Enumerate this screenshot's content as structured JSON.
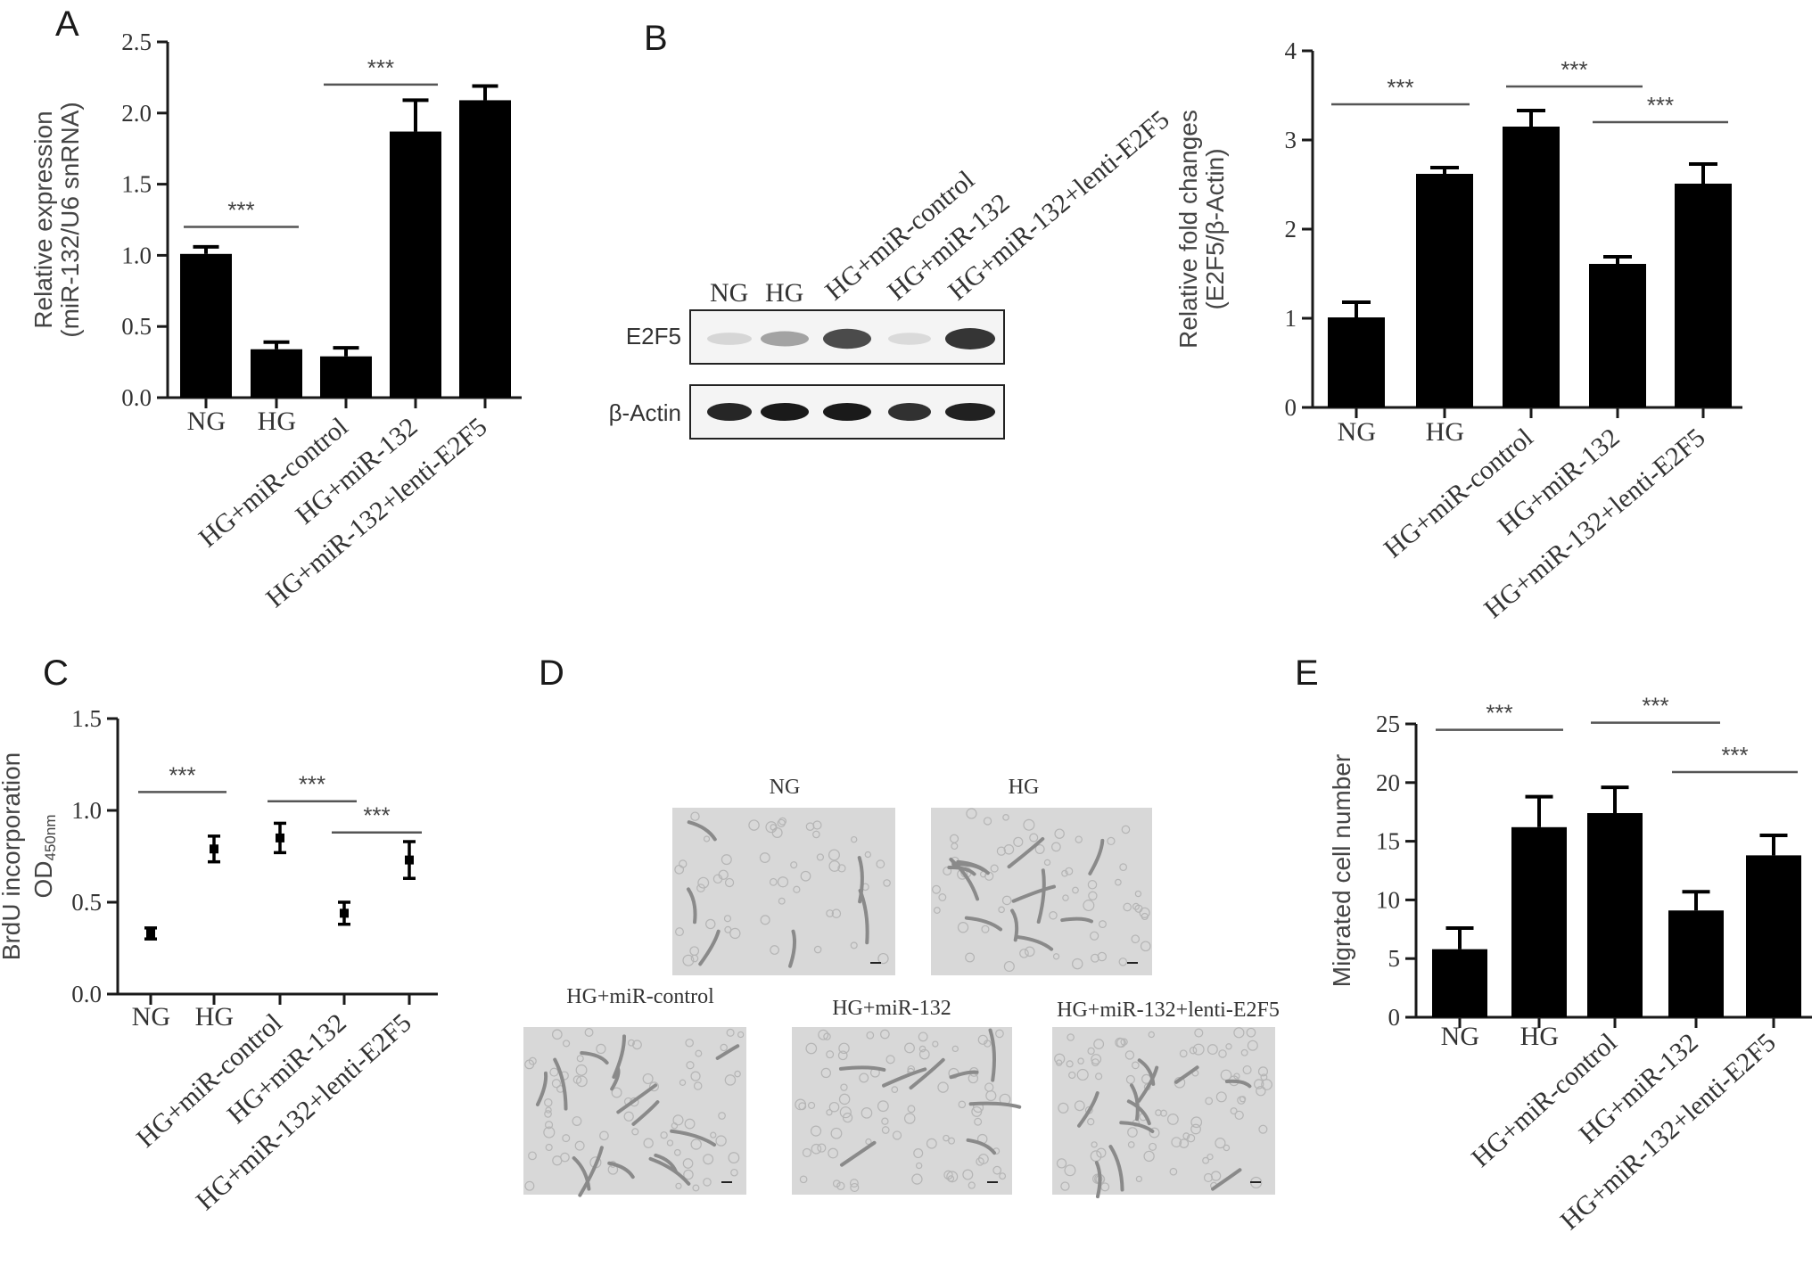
{
  "panels": {
    "A": {
      "letter": "A"
    },
    "B": {
      "letter": "B"
    },
    "C": {
      "letter": "C"
    },
    "D": {
      "letter": "D"
    },
    "E": {
      "letter": "E"
    }
  },
  "blot": {
    "lane_labels": [
      "NG",
      "HG",
      "HG+miR-control",
      "HG+miR-132",
      "HG+miR-132+lenti-E2F5"
    ],
    "row_labels": [
      "E2F5",
      "β-Actin"
    ],
    "e2f5_intensity": [
      0.12,
      0.35,
      0.75,
      0.1,
      0.85
    ],
    "actin_intensity": [
      0.9,
      0.95,
      0.95,
      0.85,
      0.92
    ]
  },
  "micrographs": {
    "labels": [
      "NG",
      "HG",
      "HG+miR-control",
      "HG+miR-132",
      "HG+miR-132+lenti-E2F5"
    ]
  },
  "chart_data": [
    {
      "id": "A",
      "type": "bar",
      "categories": [
        "NG",
        "HG",
        "HG+miR-control",
        "HG+miR-132",
        "HG+miR-132+lenti-E2F5"
      ],
      "values": [
        1.01,
        0.34,
        0.29,
        1.87,
        2.09
      ],
      "errors": [
        0.05,
        0.05,
        0.06,
        0.22,
        0.1
      ],
      "ylabel": [
        "Relative expression",
        "(miR-132/U6 snRNA)"
      ],
      "ylim": [
        0,
        2.5
      ],
      "yticks": [
        "0.0",
        "0.5",
        "1.0",
        "1.5",
        "2.0",
        "2.5"
      ],
      "significance": [
        {
          "from": 0,
          "to": 1,
          "level": 1.2,
          "label": "***"
        },
        {
          "from": 2,
          "to": 3,
          "level": 2.2,
          "label": "***"
        }
      ]
    },
    {
      "id": "B",
      "type": "bar",
      "categories": [
        "NG",
        "HG",
        "HG+miR-control",
        "HG+miR-132",
        "HG+miR-132+lenti-E2F5"
      ],
      "values": [
        1.01,
        2.62,
        3.15,
        1.61,
        2.51
      ],
      "errors": [
        0.17,
        0.07,
        0.18,
        0.08,
        0.22
      ],
      "ylabel": [
        "Relative fold changes",
        "(E2F5/β-Actin)"
      ],
      "ylim": [
        0,
        4
      ],
      "yticks": [
        "0",
        "1",
        "2",
        "3",
        "4"
      ],
      "significance": [
        {
          "from": 0,
          "to": 1,
          "level": 3.4,
          "label": "***"
        },
        {
          "from": 2,
          "to": 3,
          "level": 3.6,
          "label": "***"
        },
        {
          "from": 3,
          "to": 4,
          "level": 3.2,
          "label": "***"
        }
      ]
    },
    {
      "id": "C",
      "type": "scatter",
      "categories": [
        "NG",
        "HG",
        "HG+miR-control",
        "HG+miR-132",
        "HG+miR-132+lenti-E2F5"
      ],
      "values": [
        0.33,
        0.79,
        0.85,
        0.44,
        0.73
      ],
      "errors": [
        0.03,
        0.07,
        0.08,
        0.06,
        0.1
      ],
      "ylabel": [
        "BrdU incorporation",
        "OD",
        "450nm"
      ],
      "ylim": [
        0,
        1.5
      ],
      "yticks": [
        "0.0",
        "0.5",
        "1.0",
        "1.5"
      ],
      "significance": [
        {
          "from": 0,
          "to": 1,
          "level": 1.1,
          "label": "***"
        },
        {
          "from": 2,
          "to": 3,
          "level": 1.05,
          "label": "***"
        },
        {
          "from": 3,
          "to": 4,
          "level": 0.88,
          "label": "***"
        }
      ]
    },
    {
      "id": "E",
      "type": "bar",
      "categories": [
        "NG",
        "HG",
        "HG+miR-control",
        "HG+miR-132",
        "HG+miR-132+lenti-E2F5"
      ],
      "values": [
        5.8,
        16.2,
        17.4,
        9.1,
        13.8
      ],
      "errors": [
        1.8,
        2.6,
        2.2,
        1.6,
        1.7
      ],
      "ylabel": [
        "Migrated cell number"
      ],
      "ylim": [
        0,
        25
      ],
      "yticks": [
        "0",
        "5",
        "10",
        "15",
        "20",
        "25"
      ],
      "significance": [
        {
          "from": 0,
          "to": 1,
          "level": 24.5,
          "label": "***"
        },
        {
          "from": 2,
          "to": 3,
          "level": 25.1,
          "label": "***"
        },
        {
          "from": 3,
          "to": 4,
          "level": 20.9,
          "label": "***"
        }
      ]
    }
  ]
}
